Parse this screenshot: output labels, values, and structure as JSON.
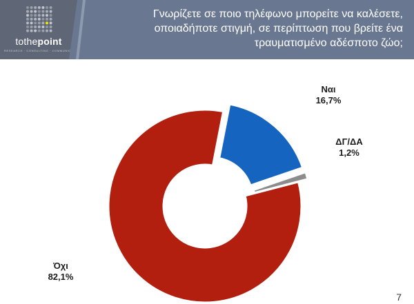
{
  "brand": {
    "name_light": "tothe",
    "name_bold": "point",
    "tagline": "RESEARCH · CONSULTING · COMMUNICATION"
  },
  "header": {
    "title_lines": [
      "Γνωρίζετε σε ποιο τηλέφωνο μπορείτε να καλέσετε,",
      "οποιαδήποτε στιγμή, σε περίπτωση που βρείτε ένα",
      "τραυματισμένο αδέσποτο ζώο;"
    ]
  },
  "chart_data": {
    "type": "pie",
    "style": "donut",
    "slices": [
      {
        "label": "Ναι",
        "value": 16.7,
        "value_label": "16,7%",
        "color": "#1565c0",
        "exploded": true
      },
      {
        "label": "ΔΓ/ΔΑ",
        "value": 1.2,
        "value_label": "1,2%",
        "color": "#8c8c8c",
        "exploded": true
      },
      {
        "label": "Όχι",
        "value": 82.1,
        "value_label": "82,1%",
        "color": "#b21f0f",
        "exploded": false
      }
    ],
    "title": "",
    "legend": "none"
  },
  "footer": {
    "page_number": "7"
  },
  "colors": {
    "header_bg": "#5f6776",
    "title_bg": "#66738a"
  }
}
